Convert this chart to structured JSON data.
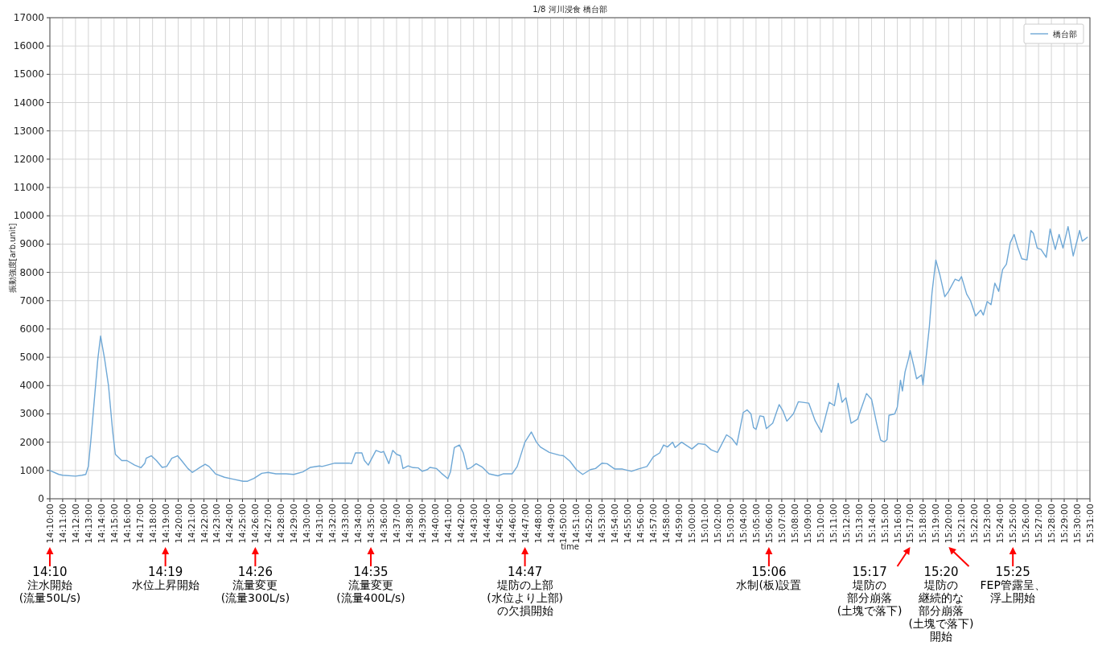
{
  "chart_data": {
    "type": "line",
    "title": "1/8 河川浸食 橋台部",
    "xlabel": "time",
    "ylabel": "振動強度[arb.unit]",
    "xlim": [
      14.1667,
      15.5167
    ],
    "ylim": [
      0,
      17000
    ],
    "xticks": [
      {
        "value": 14.1667,
        "label": "14:10:00"
      },
      {
        "value": 14.1833,
        "label": "14:11:00"
      },
      {
        "value": 14.2,
        "label": "14:12:00"
      },
      {
        "value": 14.2167,
        "label": "14:13:00"
      },
      {
        "value": 14.2333,
        "label": "14:14:00"
      },
      {
        "value": 14.25,
        "label": "14:15:00"
      },
      {
        "value": 14.2667,
        "label": "14:16:00"
      },
      {
        "value": 14.2833,
        "label": "14:17:00"
      },
      {
        "value": 14.3,
        "label": "14:18:00"
      },
      {
        "value": 14.3167,
        "label": "14:19:00"
      },
      {
        "value": 14.3333,
        "label": "14:20:00"
      },
      {
        "value": 14.35,
        "label": "14:21:00"
      },
      {
        "value": 14.3667,
        "label": "14:22:00"
      },
      {
        "value": 14.3833,
        "label": "14:23:00"
      },
      {
        "value": 14.4,
        "label": "14:24:00"
      },
      {
        "value": 14.4167,
        "label": "14:25:00"
      },
      {
        "value": 14.4333,
        "label": "14:26:00"
      },
      {
        "value": 14.45,
        "label": "14:27:00"
      },
      {
        "value": 14.4667,
        "label": "14:28:00"
      },
      {
        "value": 14.4833,
        "label": "14:29:00"
      },
      {
        "value": 14.5,
        "label": "14:30:00"
      },
      {
        "value": 14.5167,
        "label": "14:31:00"
      },
      {
        "value": 14.5333,
        "label": "14:32:00"
      },
      {
        "value": 14.55,
        "label": "14:33:00"
      },
      {
        "value": 14.5667,
        "label": "14:34:00"
      },
      {
        "value": 14.5833,
        "label": "14:35:00"
      },
      {
        "value": 14.6,
        "label": "14:36:00"
      },
      {
        "value": 14.6167,
        "label": "14:37:00"
      },
      {
        "value": 14.6333,
        "label": "14:38:00"
      },
      {
        "value": 14.65,
        "label": "14:39:00"
      },
      {
        "value": 14.6667,
        "label": "14:40:00"
      },
      {
        "value": 14.6833,
        "label": "14:41:00"
      },
      {
        "value": 14.7,
        "label": "14:42:00"
      },
      {
        "value": 14.7167,
        "label": "14:43:00"
      },
      {
        "value": 14.7333,
        "label": "14:44:00"
      },
      {
        "value": 14.75,
        "label": "14:45:00"
      },
      {
        "value": 14.7667,
        "label": "14:46:00"
      },
      {
        "value": 14.7833,
        "label": "14:47:00"
      },
      {
        "value": 14.8,
        "label": "14:48:00"
      },
      {
        "value": 14.8167,
        "label": "14:49:00"
      },
      {
        "value": 14.8333,
        "label": "14:50:00"
      },
      {
        "value": 14.85,
        "label": "14:51:00"
      },
      {
        "value": 14.8667,
        "label": "14:52:00"
      },
      {
        "value": 14.8833,
        "label": "14:53:00"
      },
      {
        "value": 14.9,
        "label": "14:54:00"
      },
      {
        "value": 14.9167,
        "label": "14:55:00"
      },
      {
        "value": 14.9333,
        "label": "14:56:00"
      },
      {
        "value": 14.95,
        "label": "14:57:00"
      },
      {
        "value": 14.9667,
        "label": "14:58:00"
      },
      {
        "value": 14.9833,
        "label": "14:59:00"
      },
      {
        "value": 15.0,
        "label": "15:00:00"
      },
      {
        "value": 15.0167,
        "label": "15:01:00"
      },
      {
        "value": 15.0333,
        "label": "15:02:00"
      },
      {
        "value": 15.05,
        "label": "15:03:00"
      },
      {
        "value": 15.0667,
        "label": "15:04:00"
      },
      {
        "value": 15.0833,
        "label": "15:05:00"
      },
      {
        "value": 15.1,
        "label": "15:06:00"
      },
      {
        "value": 15.1167,
        "label": "15:07:00"
      },
      {
        "value": 15.1333,
        "label": "15:08:00"
      },
      {
        "value": 15.15,
        "label": "15:09:00"
      },
      {
        "value": 15.1667,
        "label": "15:10:00"
      },
      {
        "value": 15.1833,
        "label": "15:11:00"
      },
      {
        "value": 15.2,
        "label": "15:12:00"
      },
      {
        "value": 15.2167,
        "label": "15:13:00"
      },
      {
        "value": 15.2333,
        "label": "15:14:00"
      },
      {
        "value": 15.25,
        "label": "15:15:00"
      },
      {
        "value": 15.2667,
        "label": "15:16:00"
      },
      {
        "value": 15.2833,
        "label": "15:17:00"
      },
      {
        "value": 15.3,
        "label": "15:18:00"
      },
      {
        "value": 15.3167,
        "label": "15:19:00"
      },
      {
        "value": 15.3333,
        "label": "15:20:00"
      },
      {
        "value": 15.35,
        "label": "15:21:00"
      },
      {
        "value": 15.3667,
        "label": "15:22:00"
      },
      {
        "value": 15.3833,
        "label": "15:23:00"
      },
      {
        "value": 15.4,
        "label": "15:24:00"
      },
      {
        "value": 15.4167,
        "label": "15:25:00"
      },
      {
        "value": 15.4333,
        "label": "15:26:00"
      },
      {
        "value": 15.45,
        "label": "15:27:00"
      },
      {
        "value": 15.4667,
        "label": "15:28:00"
      },
      {
        "value": 15.4833,
        "label": "15:29:00"
      },
      {
        "value": 15.5,
        "label": "15:30:00"
      },
      {
        "value": 15.5167,
        "label": "15:31:00"
      }
    ],
    "yticks": [
      0,
      1000,
      2000,
      3000,
      4000,
      5000,
      6000,
      7000,
      8000,
      9000,
      10000,
      11000,
      12000,
      13000,
      14000,
      15000,
      16000,
      17000
    ],
    "grid": true,
    "legend": "top right",
    "series": [
      {
        "name": "橋台部",
        "color": "#6fa8d6",
        "x": [
          14.1667,
          14.1784,
          14.1833,
          14.2,
          14.2083,
          14.2133,
          14.2167,
          14.22,
          14.2238,
          14.229,
          14.2325,
          14.2377,
          14.2428,
          14.2482,
          14.2517,
          14.26,
          14.2667,
          14.2767,
          14.285,
          14.29,
          14.2917,
          14.2983,
          14.305,
          14.3125,
          14.3183,
          14.325,
          14.3325,
          14.3383,
          14.3458,
          14.3517,
          14.3617,
          14.3683,
          14.3733,
          14.3817,
          14.3933,
          14.4033,
          14.4175,
          14.4233,
          14.4317,
          14.4417,
          14.45,
          14.46,
          14.4733,
          14.4833,
          14.495,
          14.505,
          14.5167,
          14.52,
          14.5367,
          14.555,
          14.5583,
          14.5633,
          14.5717,
          14.575,
          14.58,
          14.59,
          14.5967,
          14.6,
          14.6067,
          14.6117,
          14.6167,
          14.6217,
          14.625,
          14.6317,
          14.6383,
          14.645,
          14.65,
          14.6567,
          14.66,
          14.6683,
          14.675,
          14.6833,
          14.6867,
          14.6917,
          14.6983,
          14.7033,
          14.7083,
          14.7133,
          14.72,
          14.7283,
          14.7367,
          14.7483,
          14.755,
          14.7667,
          14.7733,
          14.7833,
          14.7917,
          14.7983,
          14.8033,
          14.815,
          14.8283,
          14.8333,
          14.8417,
          14.85,
          14.8583,
          14.8683,
          14.875,
          14.8833,
          14.89,
          14.9,
          14.91,
          14.9217,
          14.93,
          14.9417,
          14.95,
          14.9583,
          14.9633,
          14.9683,
          14.975,
          14.9783,
          14.9867,
          14.9933,
          15.0,
          15.0083,
          15.0173,
          15.025,
          15.0333,
          15.0383,
          15.045,
          15.0517,
          15.0583,
          15.0667,
          15.0717,
          15.0767,
          15.08,
          15.0833,
          15.0883,
          15.0933,
          15.0967,
          15.105,
          15.1133,
          15.1183,
          15.1233,
          15.1317,
          15.1383,
          15.1517,
          15.16,
          15.1683,
          15.1783,
          15.185,
          15.19,
          15.195,
          15.2,
          15.2067,
          15.215,
          15.2267,
          15.2333,
          15.24,
          15.245,
          15.25,
          15.2533,
          15.2558,
          15.2633,
          15.2667,
          15.2708,
          15.2733,
          15.2767,
          15.2817,
          15.2833,
          15.2883,
          15.2917,
          15.2983,
          15.3,
          15.305,
          15.3083,
          15.3117,
          15.3167,
          15.3217,
          15.3283,
          15.3333,
          15.3417,
          15.3467,
          15.35,
          15.3567,
          15.3617,
          15.3683,
          15.375,
          15.3783,
          15.3833,
          15.3883,
          15.3933,
          15.3983,
          15.4033,
          15.4083,
          15.4133,
          15.4183,
          15.4233,
          15.4283,
          15.435,
          15.44,
          15.4433,
          15.4483,
          15.4533,
          15.46,
          15.465,
          15.4717,
          15.4767,
          15.4817,
          15.4883,
          15.495,
          15.5033,
          15.5067,
          15.5133
        ],
        "values": [
          1000,
          860,
          830,
          800,
          830,
          860,
          1150,
          2100,
          3300,
          4950,
          5750,
          4950,
          4000,
          2380,
          1570,
          1350,
          1350,
          1190,
          1100,
          1260,
          1430,
          1520,
          1350,
          1110,
          1140,
          1430,
          1520,
          1330,
          1070,
          930,
          1110,
          1220,
          1140,
          880,
          760,
          700,
          620,
          620,
          720,
          900,
          930,
          880,
          880,
          860,
          950,
          1110,
          1160,
          1140,
          1260,
          1260,
          1240,
          1620,
          1620,
          1350,
          1190,
          1710,
          1640,
          1670,
          1240,
          1710,
          1570,
          1520,
          1070,
          1160,
          1100,
          1090,
          970,
          1030,
          1110,
          1070,
          900,
          710,
          950,
          1810,
          1900,
          1620,
          1050,
          1100,
          1240,
          1110,
          880,
          810,
          880,
          880,
          1140,
          2000,
          2360,
          2000,
          1830,
          1640,
          1540,
          1520,
          1330,
          1030,
          860,
          1030,
          1070,
          1260,
          1240,
          1050,
          1050,
          970,
          1050,
          1140,
          1480,
          1620,
          1900,
          1830,
          2000,
          1810,
          2000,
          1880,
          1760,
          1950,
          1920,
          1730,
          1640,
          1900,
          2260,
          2140,
          1900,
          3050,
          3140,
          3000,
          2520,
          2450,
          2930,
          2900,
          2480,
          2670,
          3330,
          3100,
          2740,
          3000,
          3430,
          3380,
          2760,
          2350,
          3410,
          3290,
          4080,
          3410,
          3570,
          2670,
          2810,
          3720,
          3510,
          2650,
          2070,
          2010,
          2090,
          2950,
          3000,
          3240,
          4190,
          3810,
          4480,
          5000,
          5240,
          4670,
          4240,
          4380,
          4020,
          5240,
          6090,
          7280,
          8440,
          7940,
          7140,
          7330,
          7760,
          7700,
          7850,
          7230,
          7000,
          6460,
          6670,
          6490,
          6970,
          6860,
          7620,
          7330,
          8100,
          8290,
          9050,
          9340,
          8860,
          8480,
          8440,
          9480,
          9380,
          8860,
          8810,
          8530,
          9530,
          8810,
          9340,
          8860,
          9620,
          8580,
          9480,
          9100,
          9240
        ]
      }
    ],
    "annotations": [
      "14:10\n注水開始\n(流量50L/s)",
      "14:19\n水位上昇開始",
      "14:26\n流量変更\n(流量300L/s)",
      "14:35\n流量変更\n(流量400L/s)",
      "14:47\n堤防の上部\n(水位より上部)\nの欠損開始",
      "15:06\n水制(板)設置",
      "15:17\n堤防の部分崩落\n(土塊で落下)",
      "15:20\n堤防の継続的な部分崩落\n(土塊で落下)\n開始",
      "15:25\nFEP管露呈、浮上開始"
    ]
  }
}
